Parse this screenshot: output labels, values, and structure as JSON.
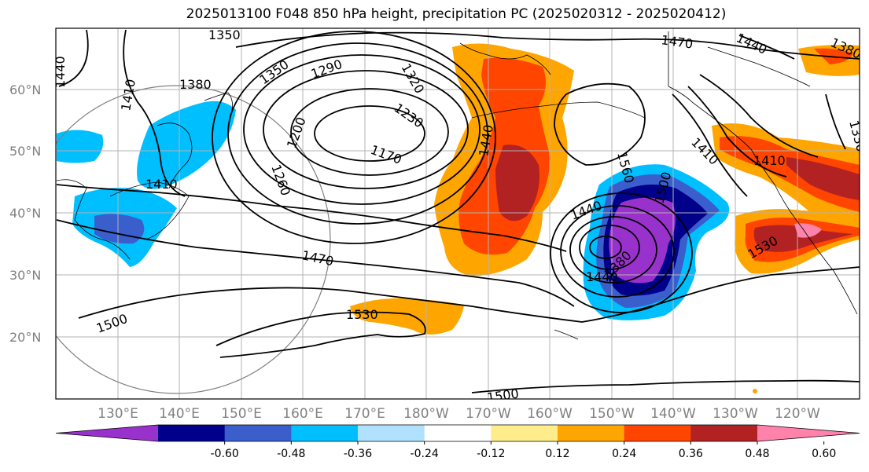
{
  "title": "2025013100 F048 850 hPa height, precipitation PC (2025020312 - 2025020412)",
  "lat_labels": [
    "60°N",
    "50°N",
    "40°N",
    "30°N",
    "20°N"
  ],
  "lon_labels": [
    "130°E",
    "140°E",
    "150°E",
    "160°E",
    "170°E",
    "180°W",
    "170°W",
    "160°W",
    "150°W",
    "140°W",
    "130°W",
    "120°W"
  ],
  "contour_labels": [
    "1350",
    "1440",
    "1470",
    "1440",
    "1380",
    "1350",
    "1290",
    "1320",
    "1410",
    "1380",
    "1230",
    "1200",
    "1260",
    "1170",
    "1440",
    "1530",
    "1560",
    "1410",
    "1410",
    "1410",
    "1500",
    "1440",
    "1470",
    "1380",
    "1440",
    "1330",
    "1530",
    "1500",
    "1530",
    "1500"
  ],
  "colorbar": {
    "ticks": [
      "-0.60",
      "-0.48",
      "-0.36",
      "-0.24",
      "-0.12",
      "0.12",
      "0.24",
      "0.36",
      "0.48",
      "0.60"
    ],
    "colors": [
      "#9932CC",
      "#00008B",
      "#3A5FCD",
      "#00BFFF",
      "#B0E2FF",
      "#FFFFFF",
      "#FFEC8B",
      "#FFA500",
      "#FF4500",
      "#B22222",
      "#FF82AB"
    ]
  }
}
